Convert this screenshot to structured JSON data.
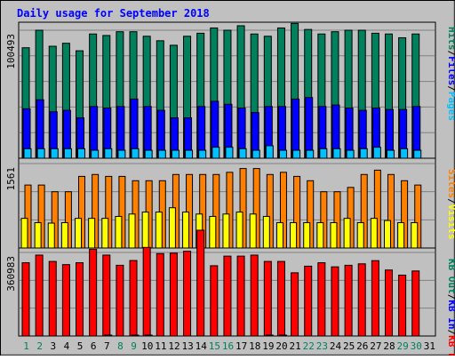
{
  "chart_data": {
    "type": "bar",
    "title": "Daily usage for September 2018",
    "categories": [
      "1",
      "2",
      "3",
      "4",
      "5",
      "6",
      "7",
      "8",
      "9",
      "10",
      "11",
      "12",
      "13",
      "14",
      "15",
      "16",
      "17",
      "18",
      "19",
      "20",
      "21",
      "22",
      "23",
      "24",
      "25",
      "26",
      "27",
      "28",
      "29",
      "30",
      "31"
    ],
    "weekend_days": [
      "1",
      "2",
      "8",
      "9",
      "15",
      "16",
      "22",
      "23",
      "29",
      "30"
    ],
    "colors": {
      "background": "#c0c0c0",
      "title": "#0000ff",
      "weekday_label": "#000000",
      "weekend_label": "#00805c",
      "hits": "#00805c",
      "files": "#0000ff",
      "pages": "#00c0ff",
      "visits": "#ffff00",
      "sites": "#ff8000",
      "kb_f": "#ff0000",
      "kb_in": "#0000ff",
      "kb_out": "#00805c"
    },
    "panels": [
      {
        "id": "hits",
        "ytick": "100493",
        "ymax": 100493,
        "legend": [
          {
            "text": "Pages",
            "color": "#00c0ff"
          },
          {
            "text": "/",
            "color": "#000000"
          },
          {
            "text": "Files",
            "color": "#0000ff"
          },
          {
            "text": "/",
            "color": "#000000"
          },
          {
            "text": "Hits",
            "color": "#00805c"
          }
        ],
        "series": [
          {
            "name": "Hits",
            "color": "#00805c",
            "values": [
              86730,
              100493,
              87910,
              90270,
              84360,
              97540,
              96360,
              99310,
              99310,
              95770,
              92230,
              88690,
              95770,
              98130,
              102270,
              100490,
              104020,
              97540,
              95770,
              102270,
              105820,
              101090,
              97540,
              99310,
              100490,
              100490,
              98130,
              97540,
              94590,
              97540,
              null
            ]
          },
          {
            "name": "Files",
            "color": "#0000ff",
            "values": [
              38800,
              45880,
              36450,
              37630,
              31710,
              40600,
              39420,
              40600,
              46470,
              40600,
              37630,
              31710,
              31710,
              40600,
              44700,
              42340,
              39420,
              35860,
              40600,
              40600,
              46470,
              47650,
              40600,
              41780,
              39420,
              37630,
              39420,
              38240,
              38240,
              40600,
              null
            ]
          },
          {
            "name": "Pages",
            "color": "#00c0ff",
            "values": [
              7440,
              7440,
              7440,
              7440,
              7440,
              6260,
              7440,
              6260,
              7440,
              6260,
              6260,
              6260,
              6260,
              6260,
              8620,
              8620,
              7440,
              6260,
              9800,
              6260,
              6260,
              6260,
              7440,
              7440,
              6260,
              7440,
              8620,
              6260,
              7440,
              6260,
              null
            ]
          }
        ]
      },
      {
        "id": "visits",
        "ytick": "1561",
        "ymax": 1561,
        "legend": [
          {
            "text": "Visits",
            "color": "#ffff00"
          },
          {
            "text": "/",
            "color": "#000000"
          },
          {
            "text": "Sites",
            "color": "#ff8000"
          }
        ],
        "series": [
          {
            "name": "Sites",
            "color": "#ff8000",
            "values": [
              1164,
              1164,
              1040,
              1040,
              1324,
              1359,
              1324,
              1324,
              1244,
              1244,
              1244,
              1359,
              1359,
              1359,
              1359,
              1399,
              1469,
              1469,
              1359,
              1399,
              1324,
              1244,
              1040,
              1040,
              1120,
              1359,
              1439,
              1359,
              1244,
              1164,
              null
            ]
          },
          {
            "name": "Visits",
            "color": "#ffff00",
            "values": [
              548,
              468,
              460,
              468,
              548,
              548,
              548,
              584,
              628,
              664,
              664,
              744,
              664,
              628,
              584,
              628,
              664,
              628,
              584,
              468,
              468,
              468,
              468,
              468,
              548,
              468,
              548,
              508,
              468,
              468,
              null
            ]
          }
        ]
      },
      {
        "id": "kbytes",
        "ytick": "360983",
        "ymax": 360983,
        "legend": [
          {
            "text": "KB F",
            "color": "#ff0000"
          },
          {
            "text": "/",
            "color": "#000000"
          },
          {
            "text": "KB In",
            "color": "#0000ff"
          },
          {
            "text": "/",
            "color": "#000000"
          },
          {
            "text": "KB Out",
            "color": "#00805c"
          }
        ],
        "series": [
          {
            "name": "KB F",
            "color": "#ff0000",
            "values": [
              316510,
              349570,
              322120,
              308430,
              316510,
              374680,
              349570,
              305620,
              326170,
              382730,
              356110,
              358080,
              366140,
              457070,
              303650,
              345130,
              345130,
              349570,
              322120,
              322120,
              273080,
              301660,
              316510,
              298860,
              305620,
              311860,
              325590,
              285060,
              263030,
              281000,
              null
            ]
          },
          {
            "name": "KB In",
            "color": "#0000ff",
            "values": [
              0,
              0,
              0,
              0,
              0,
              0,
              0,
              0,
              0,
              0,
              0,
              0,
              0,
              0,
              0,
              0,
              0,
              0,
              0,
              0,
              0,
              0,
              0,
              0,
              0,
              0,
              0,
              0,
              0,
              0,
              null
            ]
          },
          {
            "name": "KB Out",
            "color": "#00805c",
            "values": [
              0,
              0,
              0,
              0,
              0,
              0,
              3790,
              0,
              3790,
              3790,
              0,
              0,
              0,
              0,
              0,
              0,
              0,
              0,
              3790,
              3790,
              0,
              0,
              0,
              0,
              0,
              0,
              0,
              0,
              0,
              0,
              null
            ]
          }
        ]
      }
    ]
  }
}
